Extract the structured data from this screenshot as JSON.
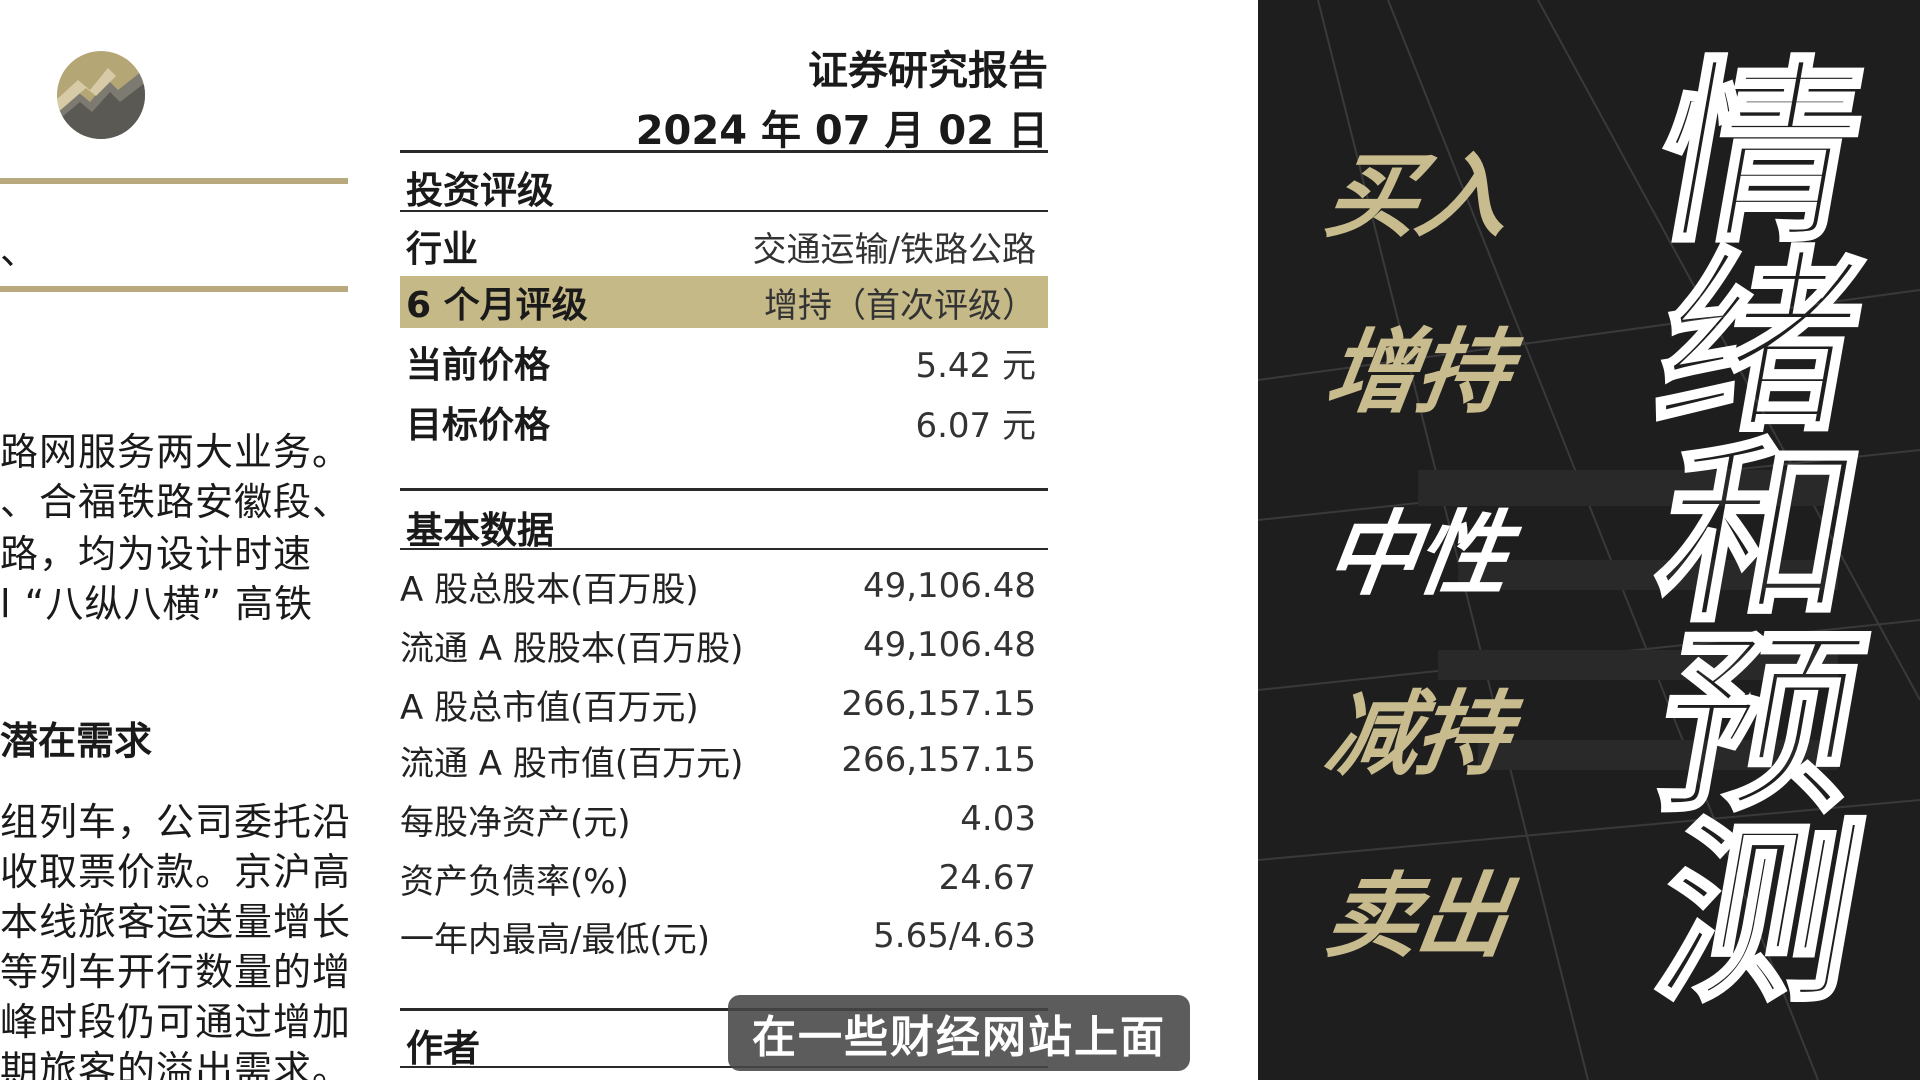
{
  "document": {
    "report_title": "证券研究报告",
    "report_date": "2024 年 07 月 02 日",
    "left_fragments": {
      "line_top": "、",
      "para1": [
        "路网服务两大业务。",
        "、合福铁路安徽段、",
        "路，均为设计时速",
        "l “八纵八横” 高铁"
      ],
      "heading": "潜在需求",
      "para2": [
        "组列车，公司委托沿",
        "收取票价款。京沪高",
        "本线旅客运送量增长",
        "等列车开行数量的增",
        "峰时段仍可通过增加",
        "期旅客的溢出需求。"
      ]
    },
    "rating_section": {
      "title": "投资评级",
      "rows": [
        {
          "label": "行业",
          "value": "交通运输/铁路公路"
        },
        {
          "label": "6 个月评级",
          "value": "增持（首次评级）"
        },
        {
          "label": "当前价格",
          "value": "5.42 元"
        },
        {
          "label": "目标价格",
          "value": "6.07 元"
        }
      ]
    },
    "basic_data": {
      "title": "基本数据",
      "rows": [
        {
          "label": "A 股总股本(百万股)",
          "value": "49,106.48"
        },
        {
          "label": "流通 A 股股本(百万股)",
          "value": "49,106.48"
        },
        {
          "label": "A 股总市值(百万元)",
          "value": "266,157.15"
        },
        {
          "label": "流通 A 股市值(百万元)",
          "value": "266,157.15"
        },
        {
          "label": "每股净资产(元)",
          "value": "4.03"
        },
        {
          "label": "资产负债率(%)",
          "value": "24.67"
        },
        {
          "label": "一年内最高/最低(元)",
          "value": "5.65/4.63"
        }
      ]
    },
    "author_title": "作者"
  },
  "subtitle": "在一些财经网站上面",
  "overlay": {
    "ratings": [
      "买入",
      "增持",
      "中性",
      "减持",
      "卖出"
    ],
    "big_title": [
      "情",
      "绪",
      "和",
      "预",
      "测"
    ]
  },
  "colors": {
    "gold": "#c8bc8e",
    "highlight": "#c5b988",
    "dark_bg": "#1f1e1f"
  },
  "icons": [
    "logo-emblem-icon"
  ]
}
